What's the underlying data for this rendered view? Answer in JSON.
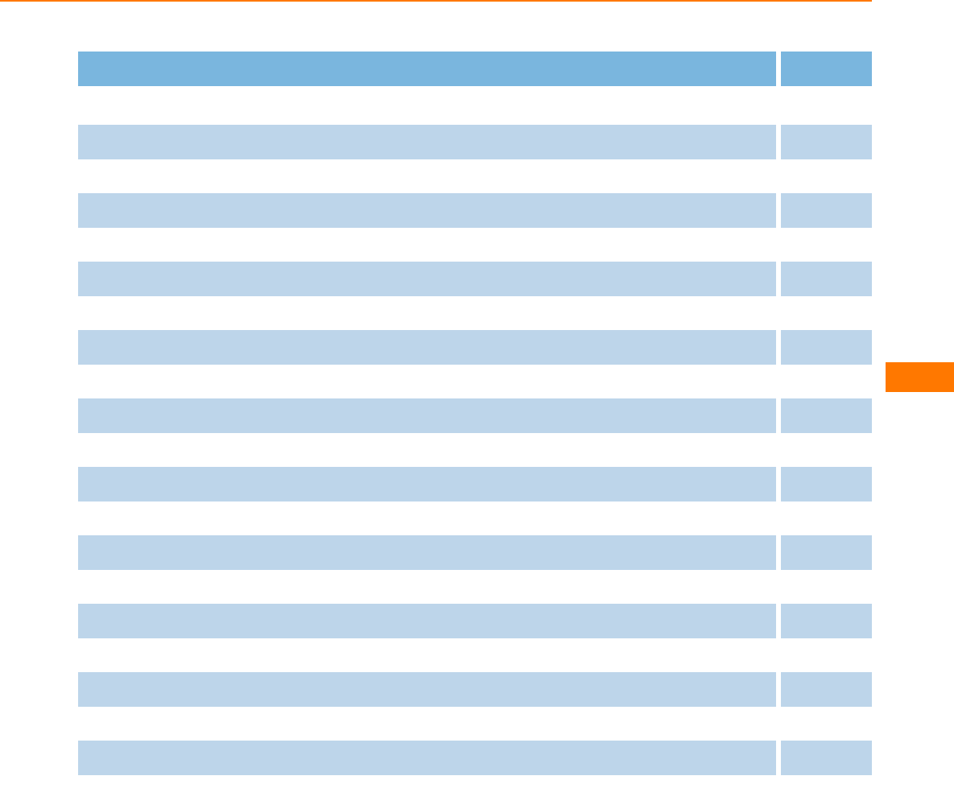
{
  "colors": {
    "accent": "#FF7800",
    "header_fill": "#7AB6DE",
    "row_fill": "#BDD5EA",
    "background": "#FFFFFF"
  },
  "side_tab": {
    "label": ""
  },
  "table": {
    "header": {
      "title": "",
      "page": ""
    },
    "rows": [
      {
        "title": "",
        "page": ""
      },
      {
        "title": "",
        "page": ""
      },
      {
        "title": "",
        "page": ""
      },
      {
        "title": "",
        "page": ""
      },
      {
        "title": "",
        "page": ""
      },
      {
        "title": "",
        "page": ""
      },
      {
        "title": "",
        "page": ""
      },
      {
        "title": "",
        "page": ""
      },
      {
        "title": "",
        "page": ""
      },
      {
        "title": "",
        "page": ""
      }
    ]
  }
}
